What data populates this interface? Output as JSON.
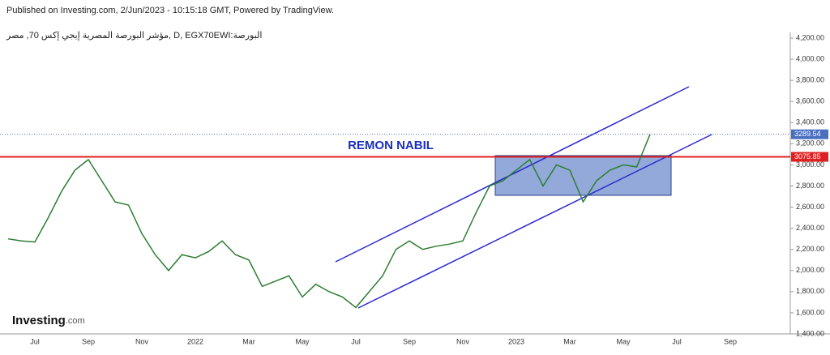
{
  "chart_data": {
    "type": "line",
    "title": "Published on Investing.com, 2/Jun/2023 - 10:15:18 GMT, Powered by TradingView.",
    "subtitle": "مؤشر البورصة المصرية إيجي إكس 70, مصر, D, EGX70EWI:البورصة",
    "annotation": "REMON NABIL",
    "brand": "Investing",
    "brand_suffix": ".com",
    "categories": [
      null,
      null,
      "Jul",
      null,
      null,
      null,
      "Sep",
      null,
      null,
      null,
      "Nov",
      null,
      null,
      null,
      "2022",
      null,
      null,
      null,
      "Mar",
      null,
      null,
      null,
      "May",
      null,
      null,
      null,
      "Jul",
      null,
      null,
      null,
      "Sep",
      null,
      null,
      null,
      "Nov",
      null,
      null,
      null,
      "2023",
      null,
      null,
      null,
      "Mar",
      null,
      null,
      null,
      "May",
      null,
      null,
      null,
      "Jul",
      null,
      null,
      null,
      "Sep",
      null,
      null,
      null,
      null,
      null
    ],
    "series": [
      {
        "color": "#2e7d32",
        "values": [
          2300,
          2280,
          2270,
          2500,
          2750,
          2950,
          3050,
          2850,
          2650,
          2620,
          2350,
          2150,
          2000,
          2150,
          2120,
          2180,
          2280,
          2150,
          2100,
          1850,
          1900,
          1950,
          1750,
          1870,
          1800,
          1750,
          1650,
          1800,
          1950,
          2200,
          2280,
          2200,
          2230,
          2250,
          2280,
          2550,
          2800,
          2850,
          2950,
          3050,
          2800,
          3000,
          2950,
          2650,
          2850,
          2950,
          3000,
          2980,
          3289.54,
          null,
          null,
          null,
          null,
          null,
          null,
          null,
          null,
          null,
          null,
          null
        ]
      }
    ],
    "last_price": 3289.54,
    "resistance": 3075.85,
    "ylim": [
      1400,
      4200
    ],
    "yticks": [
      {
        "value": 1400,
        "label": "1,400.00"
      },
      {
        "value": 1600,
        "label": "1,600.00"
      },
      {
        "value": 1800,
        "label": "1,800.00"
      },
      {
        "value": 2000,
        "label": "2,000.00"
      },
      {
        "value": 2200,
        "label": "2,200.00"
      },
      {
        "value": 2400,
        "label": "2,400.00"
      },
      {
        "value": 2600,
        "label": "2,600.00"
      },
      {
        "value": 2800,
        "label": "2,800.00"
      },
      {
        "value": 3000,
        "label": "3,000.00"
      },
      {
        "value": 3200,
        "label": "3,200.00"
      },
      {
        "value": 3400,
        "label": "3,400.00"
      },
      {
        "value": 3600,
        "label": "3,600.00"
      },
      {
        "value": 3800,
        "label": "3,800.00"
      },
      {
        "value": 4000,
        "label": "4,000.00"
      },
      {
        "value": 4200,
        "label": "4,200.00"
      }
    ],
    "grid": false
  }
}
